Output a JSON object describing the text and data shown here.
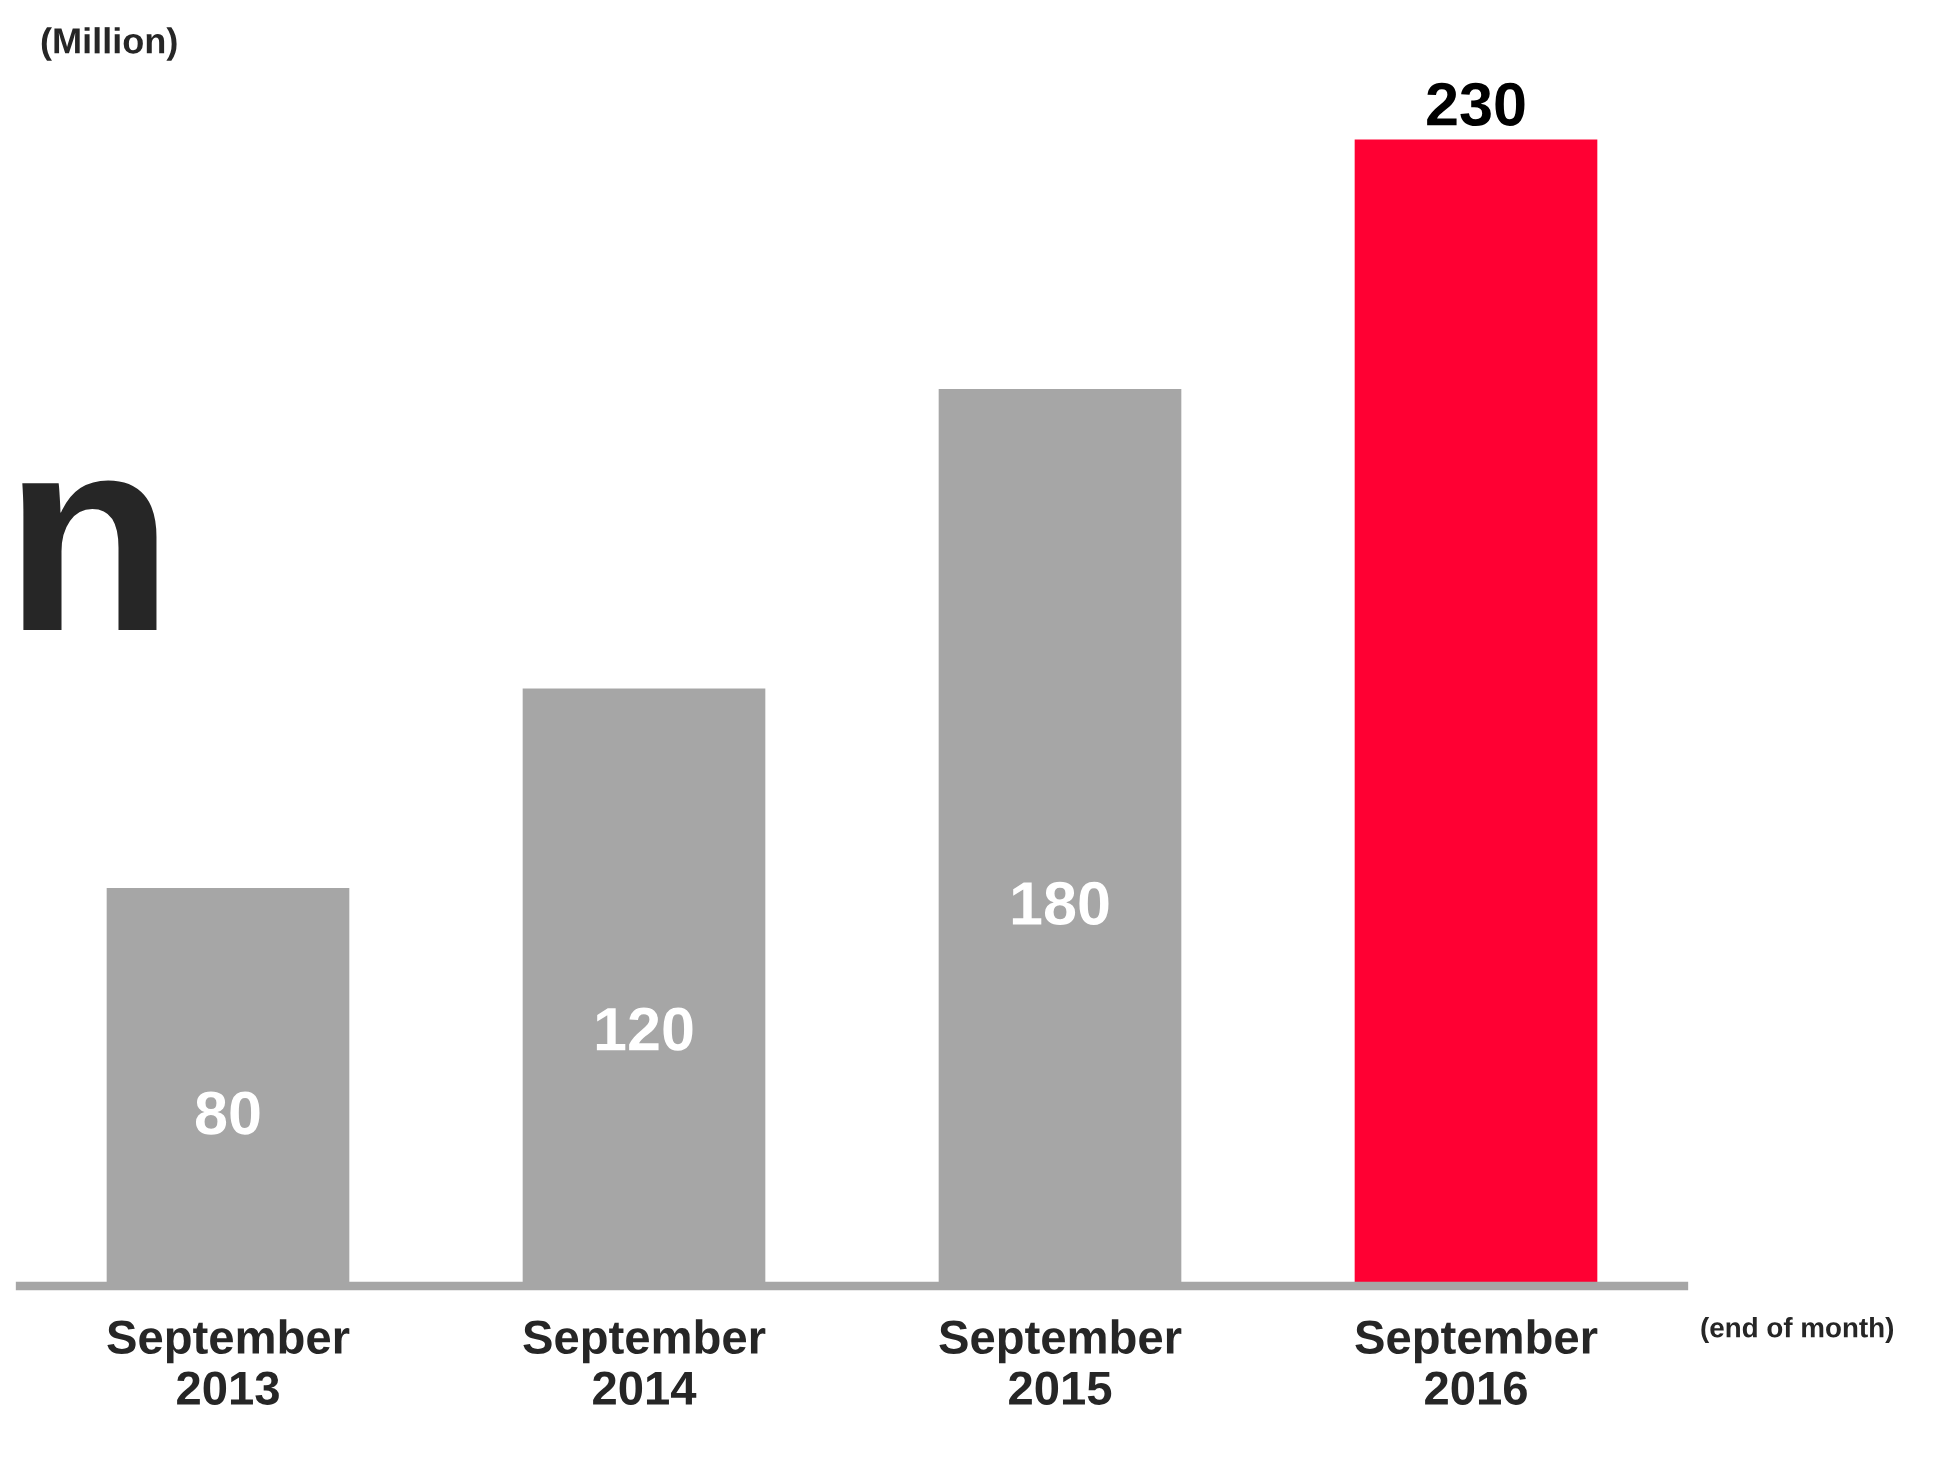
{
  "chart_data": {
    "type": "bar",
    "categories": [
      "September\n2013",
      "September\n2014",
      "September\n2015",
      "September\n2016"
    ],
    "values": [
      80,
      120,
      180,
      230
    ],
    "colors": [
      "#a6a6a6",
      "#a6a6a6",
      "#a6a6a6",
      "#ff0033"
    ],
    "data_labels": true,
    "grid": false,
    "legend": false,
    "annotations": [
      "(Million)",
      "(end of month)",
      "n"
    ]
  }
}
